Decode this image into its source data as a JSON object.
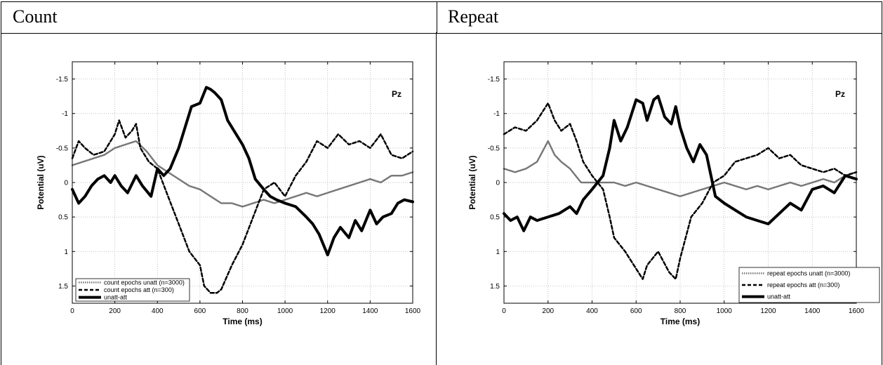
{
  "table": {
    "col1_title": "Count",
    "col2_title": "Repeat"
  },
  "chart_data": [
    {
      "type": "line",
      "xlabel": "Time (ms)",
      "ylabel": "Potential (uV)",
      "annotation": "Pz",
      "xlim": [
        0,
        1600
      ],
      "ylim": [
        -1.75,
        1.75
      ],
      "y_reversed": true,
      "grid": true,
      "legend_position": "bottom-left",
      "x_ticks": [
        0,
        200,
        400,
        600,
        800,
        1000,
        1200,
        1400,
        1600
      ],
      "y_ticks": [
        -1.5,
        -1,
        -0.5,
        0,
        0.5,
        1,
        1.5
      ],
      "series": [
        {
          "name": "count epochs unatt (n=3000)",
          "style": "dotted",
          "x": [
            0,
            50,
            100,
            150,
            200,
            250,
            300,
            350,
            400,
            450,
            500,
            550,
            600,
            650,
            700,
            750,
            800,
            850,
            900,
            950,
            1000,
            1050,
            1100,
            1150,
            1200,
            1250,
            1300,
            1350,
            1400,
            1450,
            1500,
            1550,
            1600
          ],
          "y": [
            -0.25,
            -0.3,
            -0.35,
            -0.4,
            -0.5,
            -0.55,
            -0.6,
            -0.45,
            -0.25,
            -0.15,
            -0.05,
            0.05,
            0.1,
            0.2,
            0.3,
            0.3,
            0.35,
            0.3,
            0.25,
            0.3,
            0.25,
            0.2,
            0.15,
            0.2,
            0.15,
            0.1,
            0.05,
            0.0,
            -0.05,
            0.0,
            -0.1,
            -0.1,
            -0.15
          ]
        },
        {
          "name": "count epochs att (n=300)",
          "style": "dashed",
          "x": [
            0,
            30,
            60,
            100,
            150,
            200,
            220,
            250,
            280,
            300,
            320,
            360,
            400,
            450,
            500,
            550,
            600,
            620,
            650,
            680,
            700,
            750,
            800,
            850,
            900,
            950,
            1000,
            1050,
            1100,
            1150,
            1200,
            1250,
            1300,
            1350,
            1400,
            1450,
            1500,
            1550,
            1600
          ],
          "y": [
            -0.35,
            -0.6,
            -0.5,
            -0.4,
            -0.45,
            -0.7,
            -0.9,
            -0.65,
            -0.75,
            -0.85,
            -0.5,
            -0.3,
            -0.2,
            0.2,
            0.6,
            1.0,
            1.2,
            1.5,
            1.6,
            1.6,
            1.55,
            1.2,
            0.9,
            0.5,
            0.1,
            0.0,
            0.2,
            -0.1,
            -0.3,
            -0.6,
            -0.5,
            -0.7,
            -0.55,
            -0.6,
            -0.5,
            -0.7,
            -0.4,
            -0.35,
            -0.45
          ]
        },
        {
          "name": "unatt-att",
          "style": "solid-thick",
          "x": [
            0,
            30,
            60,
            90,
            120,
            150,
            180,
            200,
            230,
            260,
            300,
            330,
            370,
            400,
            430,
            460,
            500,
            530,
            560,
            600,
            630,
            650,
            670,
            700,
            730,
            760,
            800,
            830,
            860,
            900,
            930,
            960,
            1000,
            1050,
            1100,
            1130,
            1160,
            1200,
            1230,
            1260,
            1300,
            1330,
            1360,
            1400,
            1430,
            1460,
            1500,
            1530,
            1560,
            1600
          ],
          "y": [
            0.1,
            0.3,
            0.2,
            0.05,
            -0.05,
            -0.1,
            0.0,
            -0.1,
            0.05,
            0.15,
            -0.1,
            0.05,
            0.2,
            -0.2,
            -0.1,
            -0.2,
            -0.5,
            -0.8,
            -1.1,
            -1.15,
            -1.38,
            -1.35,
            -1.3,
            -1.2,
            -0.9,
            -0.75,
            -0.55,
            -0.35,
            -0.05,
            0.1,
            0.2,
            0.25,
            0.3,
            0.35,
            0.5,
            0.6,
            0.75,
            1.05,
            0.8,
            0.65,
            0.8,
            0.55,
            0.7,
            0.4,
            0.6,
            0.5,
            0.45,
            0.3,
            0.25,
            0.28
          ]
        }
      ]
    },
    {
      "type": "line",
      "xlabel": "Time (ms)",
      "ylabel": "Potential (uV)",
      "annotation": "Pz",
      "xlim": [
        0,
        1600
      ],
      "ylim": [
        -1.75,
        1.75
      ],
      "y_reversed": true,
      "grid": true,
      "legend_position": "bottom-right",
      "x_ticks": [
        0,
        200,
        400,
        600,
        800,
        1000,
        1200,
        1400,
        1600
      ],
      "y_ticks": [
        -1.5,
        -1,
        -0.5,
        0,
        0.5,
        1,
        1.5
      ],
      "series": [
        {
          "name": "repeat epochs unatt (n=3000)",
          "style": "dotted",
          "x": [
            0,
            50,
            100,
            150,
            200,
            230,
            260,
            300,
            350,
            400,
            450,
            500,
            550,
            600,
            650,
            700,
            750,
            800,
            850,
            900,
            950,
            1000,
            1050,
            1100,
            1150,
            1200,
            1250,
            1300,
            1350,
            1400,
            1450,
            1500,
            1550,
            1600
          ],
          "y": [
            -0.2,
            -0.15,
            -0.2,
            -0.3,
            -0.6,
            -0.4,
            -0.3,
            -0.2,
            0.0,
            0.0,
            0.0,
            0.0,
            0.05,
            0.0,
            0.05,
            0.1,
            0.15,
            0.2,
            0.15,
            0.1,
            0.05,
            0.0,
            0.05,
            0.1,
            0.05,
            0.1,
            0.05,
            0.0,
            0.05,
            0.0,
            -0.05,
            0.0,
            -0.1,
            -0.15
          ]
        },
        {
          "name": "repeat epochs att (n=300)",
          "style": "dashed",
          "x": [
            0,
            50,
            100,
            150,
            200,
            230,
            260,
            300,
            330,
            360,
            400,
            450,
            480,
            500,
            550,
            600,
            630,
            650,
            700,
            750,
            780,
            800,
            850,
            900,
            950,
            1000,
            1050,
            1100,
            1150,
            1200,
            1250,
            1300,
            1350,
            1400,
            1450,
            1500,
            1550,
            1600
          ],
          "y": [
            -0.7,
            -0.8,
            -0.75,
            -0.9,
            -1.15,
            -0.9,
            -0.75,
            -0.85,
            -0.6,
            -0.3,
            -0.1,
            0.1,
            0.5,
            0.8,
            1.0,
            1.25,
            1.4,
            1.2,
            1.0,
            1.3,
            1.4,
            1.1,
            0.5,
            0.3,
            0.0,
            -0.1,
            -0.3,
            -0.35,
            -0.4,
            -0.5,
            -0.35,
            -0.4,
            -0.25,
            -0.2,
            -0.15,
            -0.2,
            -0.1,
            -0.15
          ]
        },
        {
          "name": "unatt-att",
          "style": "solid-thick",
          "x": [
            0,
            30,
            60,
            90,
            120,
            150,
            200,
            250,
            300,
            330,
            360,
            400,
            450,
            480,
            500,
            530,
            560,
            600,
            630,
            650,
            680,
            700,
            730,
            760,
            780,
            800,
            830,
            860,
            890,
            920,
            960,
            1000,
            1050,
            1100,
            1150,
            1200,
            1250,
            1300,
            1350,
            1400,
            1450,
            1500,
            1550,
            1600
          ],
          "y": [
            0.45,
            0.55,
            0.5,
            0.7,
            0.5,
            0.55,
            0.5,
            0.45,
            0.35,
            0.45,
            0.25,
            0.1,
            -0.1,
            -0.5,
            -0.9,
            -0.6,
            -0.8,
            -1.2,
            -1.15,
            -0.9,
            -1.2,
            -1.25,
            -0.95,
            -0.85,
            -1.1,
            -0.8,
            -0.5,
            -0.3,
            -0.55,
            -0.4,
            0.2,
            0.3,
            0.4,
            0.5,
            0.55,
            0.6,
            0.45,
            0.3,
            0.4,
            0.1,
            0.05,
            0.15,
            -0.1,
            -0.05
          ]
        }
      ]
    }
  ]
}
